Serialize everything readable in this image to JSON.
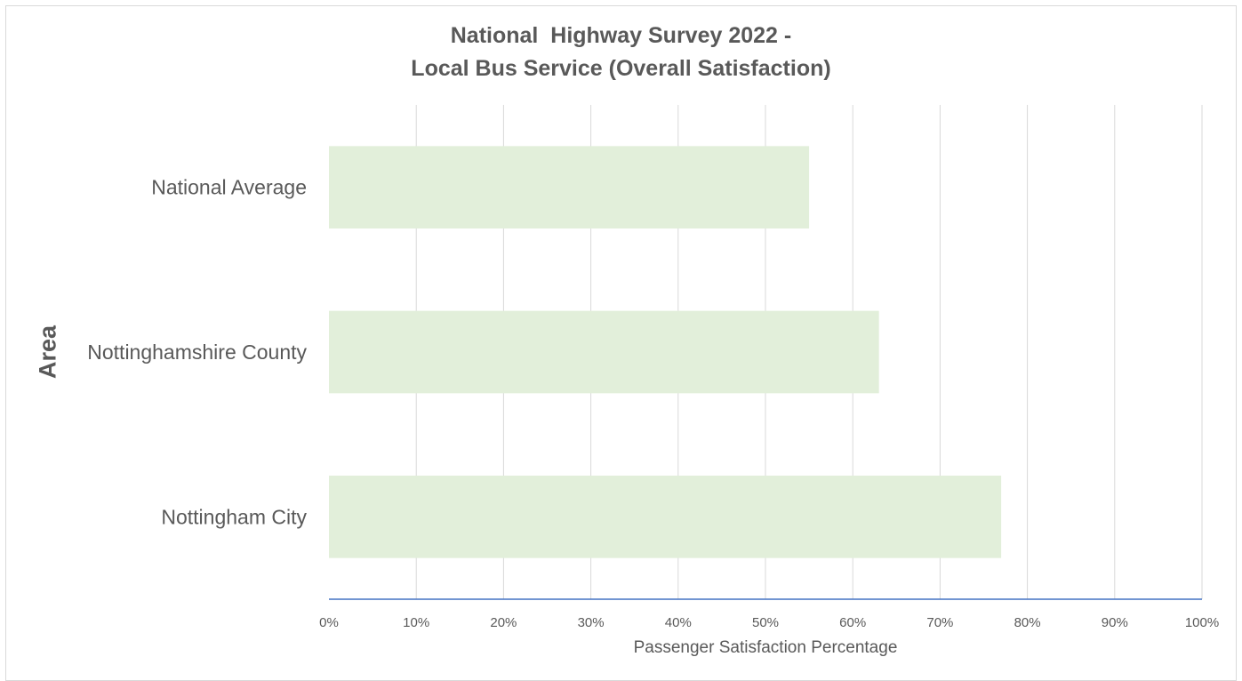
{
  "chart_data": {
    "type": "bar",
    "orientation": "horizontal",
    "title_lines": [
      "National  Highway Survey 2022 -",
      "Local Bus Service (Overall Satisfaction)"
    ],
    "xlabel": "Passenger Satisfaction Percentage",
    "ylabel": "Area",
    "categories": [
      "National Average",
      "Nottinghamshire County",
      "Nottingham City"
    ],
    "values": [
      55,
      63,
      77
    ],
    "xlim": [
      0,
      100
    ],
    "xticks": [
      "0%",
      "10%",
      "20%",
      "30%",
      "40%",
      "50%",
      "60%",
      "70%",
      "80%",
      "90%",
      "100%"
    ],
    "grid": true,
    "legend": "none",
    "bar_color": "#e2efda",
    "axis_color": "#4472c4"
  }
}
